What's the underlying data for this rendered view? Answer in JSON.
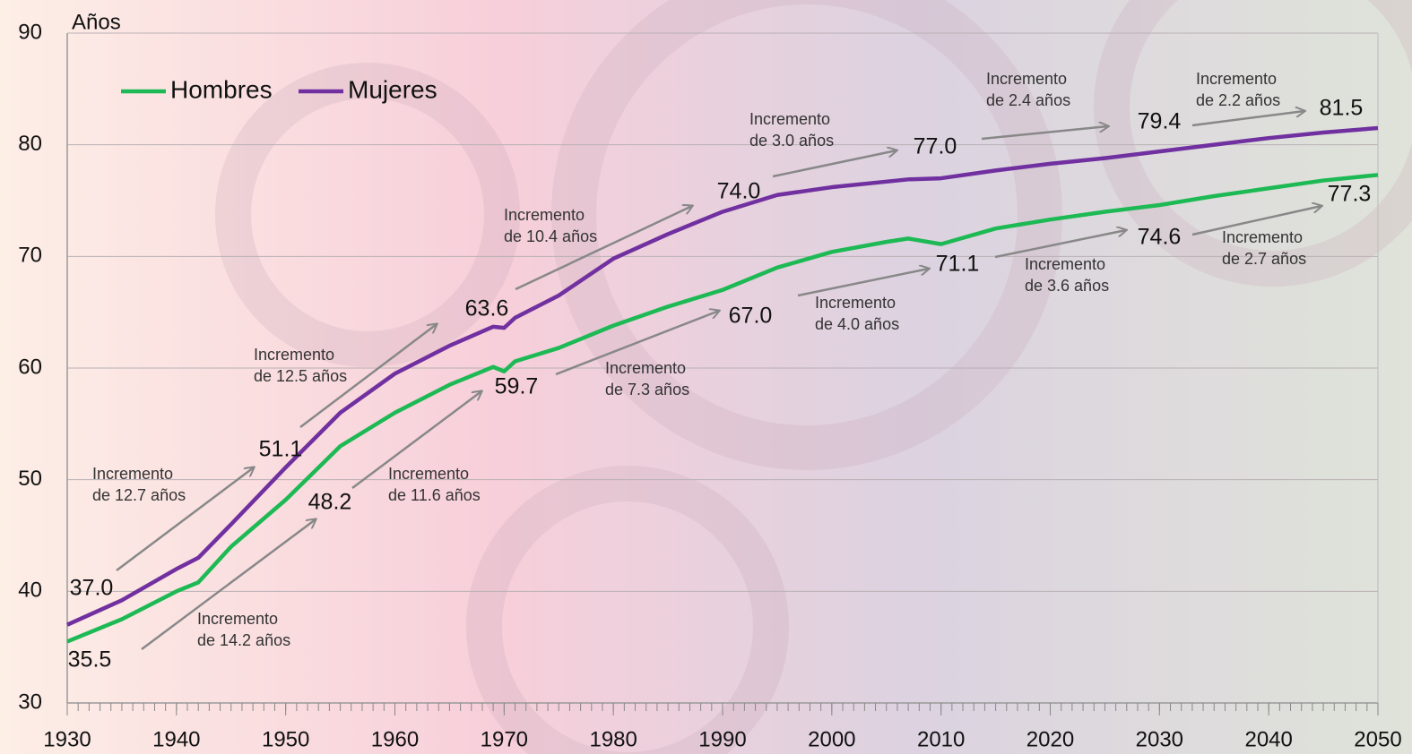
{
  "chart_data": {
    "type": "line",
    "y_label": "Años",
    "x": [
      1930,
      1935,
      1940,
      1942,
      1945,
      1950,
      1955,
      1960,
      1965,
      1969,
      1970,
      1971,
      1975,
      1980,
      1985,
      1990,
      1995,
      2000,
      2005,
      2007,
      2010,
      2015,
      2020,
      2025,
      2030,
      2035,
      2040,
      2045,
      2050
    ],
    "series": [
      {
        "name": "Hombres",
        "color": "#1db954",
        "values": [
          35.5,
          37.5,
          40.0,
          40.8,
          44.0,
          48.2,
          53.0,
          56.0,
          58.5,
          60.1,
          59.7,
          60.6,
          61.8,
          63.8,
          65.5,
          67.0,
          69.0,
          70.4,
          71.3,
          71.6,
          71.1,
          72.5,
          73.3,
          74.0,
          74.6,
          75.4,
          76.1,
          76.8,
          77.3
        ],
        "value_labels": [
          "35.5",
          null,
          null,
          null,
          null,
          "48.2",
          null,
          null,
          null,
          null,
          "59.7",
          null,
          null,
          null,
          null,
          "67.0",
          null,
          null,
          null,
          null,
          "71.1",
          null,
          null,
          null,
          "74.6",
          null,
          null,
          null,
          "77.3"
        ]
      },
      {
        "name": "Mujeres",
        "color": "#7030a0",
        "values": [
          37.0,
          39.2,
          42.0,
          43.0,
          46.0,
          51.1,
          56.0,
          59.5,
          62.0,
          63.7,
          63.6,
          64.5,
          66.5,
          69.8,
          72.0,
          74.0,
          75.5,
          76.2,
          76.7,
          76.9,
          77.0,
          77.7,
          78.3,
          78.8,
          79.4,
          80.0,
          80.6,
          81.1,
          81.5
        ],
        "value_labels": [
          "37.0",
          null,
          null,
          null,
          null,
          "51.1",
          null,
          null,
          null,
          null,
          "63.6",
          null,
          null,
          null,
          null,
          "74.0",
          null,
          null,
          null,
          null,
          "77.0",
          null,
          null,
          null,
          "79.4",
          null,
          null,
          null,
          "81.5"
        ]
      }
    ],
    "xlim": [
      1930,
      2050
    ],
    "xticks": [
      1930,
      1940,
      1950,
      1960,
      1970,
      1980,
      1990,
      2000,
      2010,
      2020,
      2030,
      2040,
      2050
    ],
    "ylim": [
      30,
      90
    ],
    "yticks": [
      30,
      40,
      50,
      60,
      70,
      80,
      90
    ],
    "grid": true,
    "annotations": [
      [
        "Incremento",
        "de 12.7 años"
      ],
      [
        "Incremento",
        "de 14.2 años"
      ],
      [
        "Incremento",
        "de  12.5 años"
      ],
      [
        "Incremento",
        "de 11.6 años"
      ],
      [
        "Incremento",
        "de 10.4 años"
      ],
      [
        "Incremento",
        "de 7.3 años"
      ],
      [
        "Incremento",
        "de 3.0 años"
      ],
      [
        "Incremento",
        "de 4.0  años"
      ],
      [
        "Incremento",
        "de 2.4 años"
      ],
      [
        "Incremento",
        "de 3.6 años"
      ],
      [
        "Incremento",
        "de 2.2 años"
      ],
      [
        "Incremento",
        "de 2.7 años"
      ]
    ]
  }
}
